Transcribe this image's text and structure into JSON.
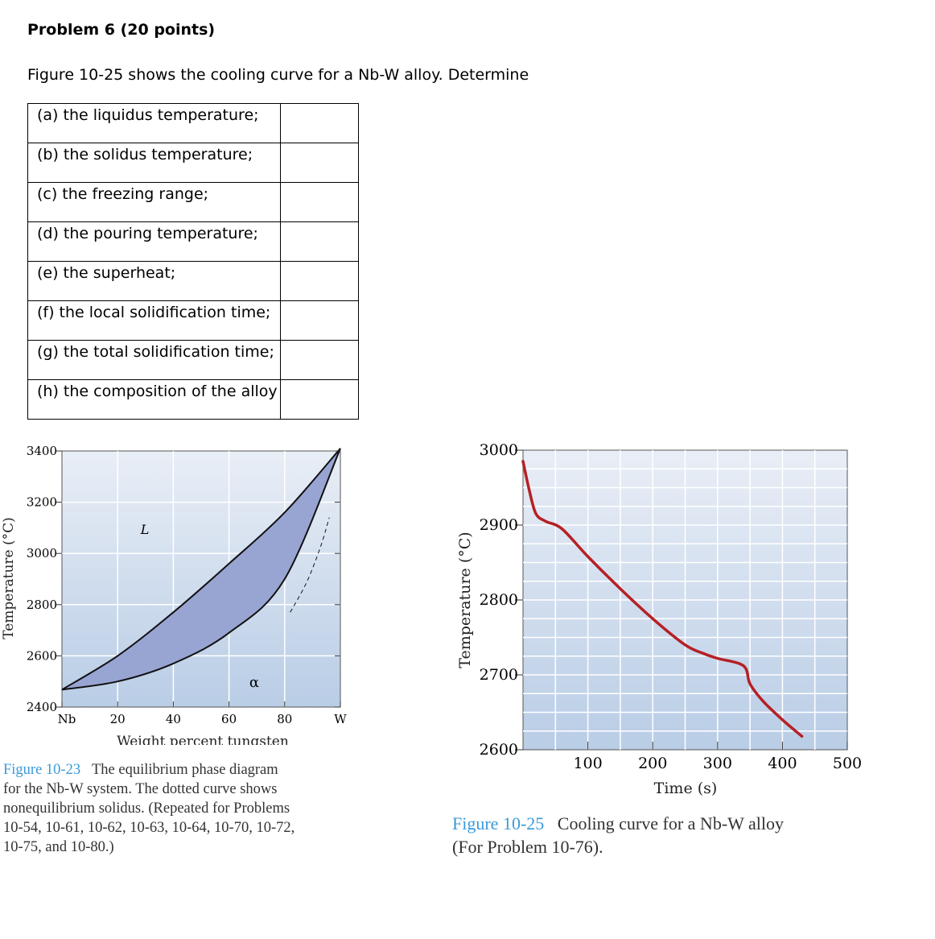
{
  "problem": {
    "title": "Problem 6 (20 points)",
    "intro": "Figure 10-25 shows the cooling curve for a Nb-W alloy. Determine"
  },
  "questions": [
    {
      "label": "(a) the liquidus temperature;",
      "answer": ""
    },
    {
      "label": "(b) the solidus temperature;",
      "answer": ""
    },
    {
      "label": "(c) the freezing range;",
      "answer": ""
    },
    {
      "label": "(d) the pouring temperature;",
      "answer": ""
    },
    {
      "label": "(e) the superheat;",
      "answer": ""
    },
    {
      "label": "(f) the local solidification time;",
      "answer": ""
    },
    {
      "label": "(g) the total solidification time;",
      "answer": ""
    },
    {
      "label": "(h) the composition of the alloy",
      "answer": ""
    }
  ],
  "phase_diagram": {
    "ylabel": "Temperature (°C)",
    "xlabel": "Weight percent tungsten",
    "yticks": [
      "3400",
      "3200",
      "3000",
      "2800",
      "2600",
      "2400"
    ],
    "xticks": [
      "Nb",
      "20",
      "40",
      "60",
      "80",
      "W"
    ],
    "region_liquid": "L",
    "region_solid": "α",
    "caption_fig": "Figure 10-23",
    "caption_lines": [
      "The equilibrium phase diagram",
      "for the Nb-W system. The dotted curve shows",
      "nonequilibrium solidus. (Repeated for Problems",
      "10-54, 10-61, 10-62, 10-63, 10-64, 10-70, 10-72,",
      "10-75, and 10-80.)"
    ]
  },
  "cooling_curve": {
    "ylabel": "Temperature (°C)",
    "xlabel": "Time (s)",
    "yticks": [
      "3000",
      "2900",
      "2800",
      "2700",
      "2600"
    ],
    "xticks": [
      "100",
      "200",
      "300",
      "400",
      "500"
    ],
    "caption_fig": "Figure 10-25",
    "caption_line1": "Cooling curve for a Nb-W alloy",
    "caption_line2": "(For Problem 10-76)."
  },
  "chart_data": [
    {
      "type": "line",
      "title": "",
      "xlabel": "Weight percent tungsten",
      "ylabel": "Temperature (°C)",
      "xlim": [
        0,
        100
      ],
      "ylim": [
        2400,
        3400
      ],
      "series": [
        {
          "name": "liquidus",
          "x": [
            0,
            20,
            40,
            60,
            80,
            100
          ],
          "y": [
            2468,
            2600,
            2770,
            2960,
            3160,
            3410
          ]
        },
        {
          "name": "solidus",
          "x": [
            0,
            20,
            40,
            60,
            80,
            100
          ],
          "y": [
            2468,
            2500,
            2570,
            2690,
            2900,
            3410
          ]
        },
        {
          "name": "nonequilibrium solidus",
          "x": [
            82,
            88,
            93,
            96
          ],
          "y": [
            2770,
            2890,
            3030,
            3140
          ]
        }
      ]
    },
    {
      "type": "line",
      "title": "",
      "xlabel": "Time (s)",
      "ylabel": "Temperature (°C)",
      "xlim": [
        0,
        500
      ],
      "ylim": [
        2600,
        3000
      ],
      "series": [
        {
          "x": [
            0,
            10,
            20,
            35,
            60,
            100,
            150,
            200,
            250,
            280,
            300,
            340,
            350,
            370,
            400,
            430
          ],
          "y": [
            2985,
            2945,
            2915,
            2905,
            2895,
            2858,
            2815,
            2775,
            2740,
            2728,
            2722,
            2712,
            2688,
            2665,
            2640,
            2618
          ]
        }
      ]
    }
  ]
}
